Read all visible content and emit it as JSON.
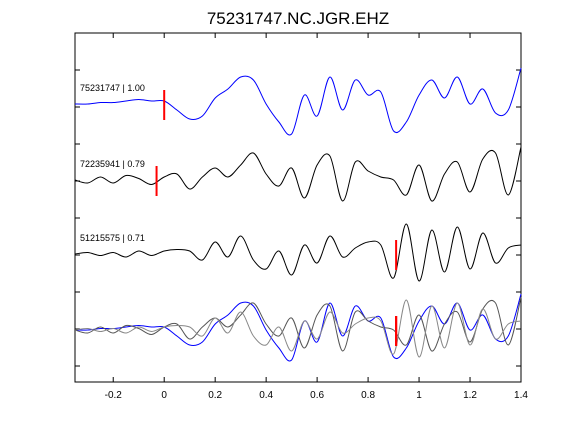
{
  "chart_data": {
    "type": "line",
    "title": "75231747.NC.JGR.EHZ",
    "xlabel": "",
    "ylabel": "",
    "xlim": [
      -0.35,
      1.4
    ],
    "x_ticks": [
      -0.2,
      0,
      0.2,
      0.4,
      0.6,
      0.8,
      1,
      1.2,
      1.4
    ],
    "x_tick_labels": [
      "-0.2",
      "0",
      "0.2",
      "0.4",
      "0.6",
      "0.8",
      "1",
      "1.2",
      "1.4"
    ],
    "grid": false,
    "legend": "none",
    "series": [
      {
        "name": "75231747 | 1.00",
        "color": "#0000ff",
        "pick_time": 0.0,
        "x": [
          -0.35,
          -0.3,
          -0.25,
          -0.2,
          -0.15,
          -0.1,
          -0.05,
          0.0,
          0.05,
          0.1,
          0.15,
          0.2,
          0.25,
          0.3,
          0.35,
          0.4,
          0.45,
          0.5,
          0.55,
          0.6,
          0.65,
          0.7,
          0.75,
          0.8,
          0.85,
          0.9,
          0.95,
          1.0,
          1.05,
          1.1,
          1.15,
          1.2,
          1.25,
          1.3,
          1.35,
          1.4
        ],
        "y": [
          0.0,
          0.0,
          0.05,
          0.05,
          0.1,
          0.15,
          0.1,
          0.1,
          -0.2,
          -0.5,
          -0.4,
          0.2,
          0.5,
          0.9,
          0.8,
          0.0,
          -0.6,
          -1.0,
          0.3,
          -0.4,
          0.9,
          -0.2,
          0.8,
          0.3,
          0.4,
          -0.9,
          -0.6,
          0.3,
          0.8,
          0.2,
          0.9,
          0.0,
          0.5,
          -0.3,
          -0.2,
          1.2
        ]
      },
      {
        "name": "72235941 | 0.79",
        "color": "#000000",
        "pick_time": -0.03,
        "x": [
          -0.35,
          -0.3,
          -0.25,
          -0.2,
          -0.15,
          -0.1,
          -0.05,
          0.0,
          0.05,
          0.1,
          0.15,
          0.2,
          0.25,
          0.3,
          0.35,
          0.4,
          0.45,
          0.5,
          0.55,
          0.6,
          0.65,
          0.7,
          0.75,
          0.8,
          0.85,
          0.9,
          0.95,
          1.0,
          1.05,
          1.1,
          1.15,
          1.2,
          1.25,
          1.3,
          1.35,
          1.4
        ],
        "y": [
          0.0,
          -0.1,
          0.1,
          -0.1,
          0.15,
          0.05,
          -0.15,
          0.1,
          0.2,
          -0.3,
          0.1,
          0.4,
          0.1,
          0.5,
          0.9,
          0.2,
          -0.2,
          0.4,
          -0.6,
          0.5,
          0.8,
          -0.7,
          0.6,
          0.3,
          0.1,
          0.0,
          -0.5,
          0.5,
          -0.7,
          0.2,
          0.6,
          -0.4,
          0.7,
          0.9,
          -0.5,
          1.1
        ]
      },
      {
        "name": "51215575 | 0.71",
        "color": "#000000",
        "pick_time": 0.91,
        "x": [
          -0.35,
          -0.3,
          -0.25,
          -0.2,
          -0.15,
          -0.1,
          -0.05,
          0.0,
          0.05,
          0.1,
          0.15,
          0.2,
          0.25,
          0.3,
          0.35,
          0.4,
          0.45,
          0.5,
          0.55,
          0.6,
          0.65,
          0.7,
          0.75,
          0.8,
          0.85,
          0.9,
          0.95,
          1.0,
          1.05,
          1.1,
          1.15,
          1.2,
          1.25,
          1.3,
          1.35,
          1.4
        ],
        "y": [
          0.0,
          0.05,
          -0.05,
          0.05,
          -0.1,
          0.1,
          -0.05,
          0.1,
          0.15,
          0.1,
          -0.2,
          0.4,
          -0.1,
          0.6,
          -0.2,
          -0.5,
          0.1,
          -0.7,
          0.3,
          -0.3,
          0.6,
          -0.1,
          0.2,
          0.4,
          0.3,
          -0.8,
          1.0,
          -0.9,
          0.8,
          -0.6,
          0.9,
          -0.5,
          0.7,
          -0.3,
          0.2,
          0.3
        ]
      }
    ]
  }
}
